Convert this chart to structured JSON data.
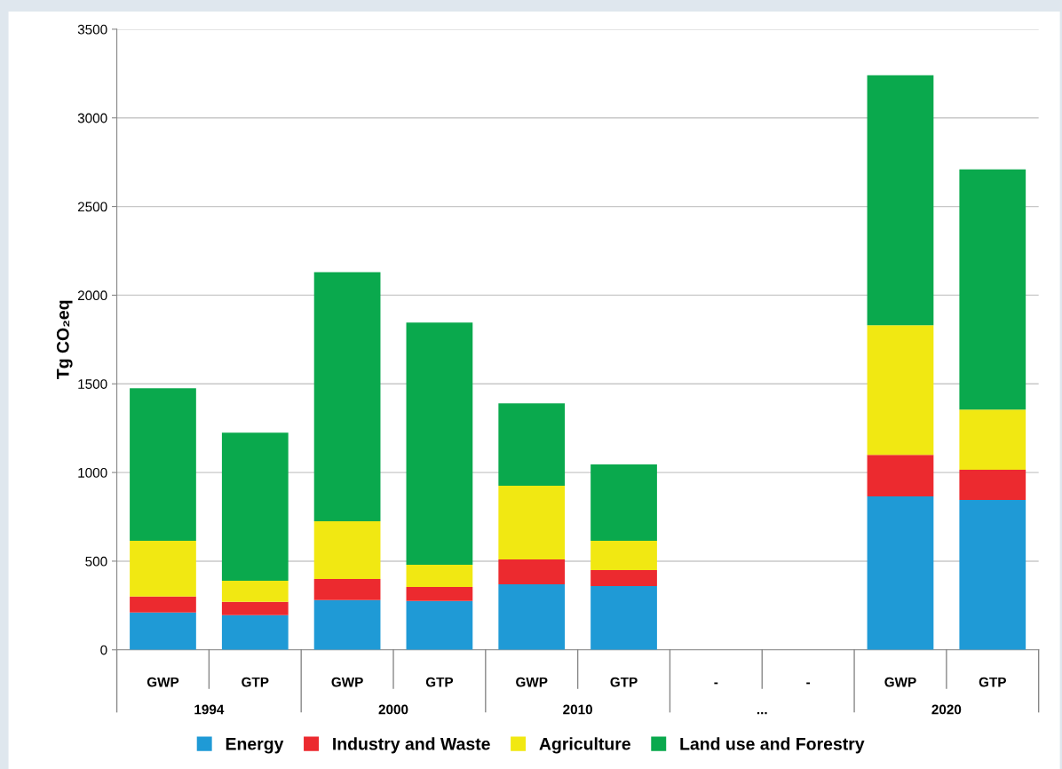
{
  "chart_data": {
    "type": "bar",
    "stacked": true,
    "ylabel": "Tg CO₂eq",
    "categories": [
      "GWP",
      "GTP",
      "GWP",
      "GTP",
      "GWP",
      "GTP",
      "-",
      "-",
      "GWP",
      "GTP"
    ],
    "annotations": [
      "1994",
      "2000",
      "2010",
      "...",
      "2020"
    ],
    "series": [
      {
        "name": "Energy",
        "color": "#1f9ad6",
        "values": [
          210,
          195,
          280,
          275,
          370,
          360,
          null,
          null,
          865,
          845
        ]
      },
      {
        "name": "Industry and Waste",
        "color": "#ec2a2f",
        "values": [
          90,
          75,
          120,
          80,
          140,
          90,
          null,
          null,
          235,
          170
        ]
      },
      {
        "name": "Agriculture",
        "color": "#f1e812",
        "values": [
          315,
          120,
          325,
          125,
          415,
          165,
          null,
          null,
          730,
          340
        ]
      },
      {
        "name": "Land use and Forestry",
        "color": "#0aa94d",
        "values": [
          860,
          835,
          1405,
          1365,
          465,
          430,
          null,
          null,
          1410,
          1355
        ]
      }
    ],
    "ylim": [
      0,
      3500
    ],
    "yticks": [
      0,
      500,
      1000,
      1500,
      2000,
      2500,
      3000,
      3500
    ],
    "grid": "y",
    "legend": "bottom"
  }
}
